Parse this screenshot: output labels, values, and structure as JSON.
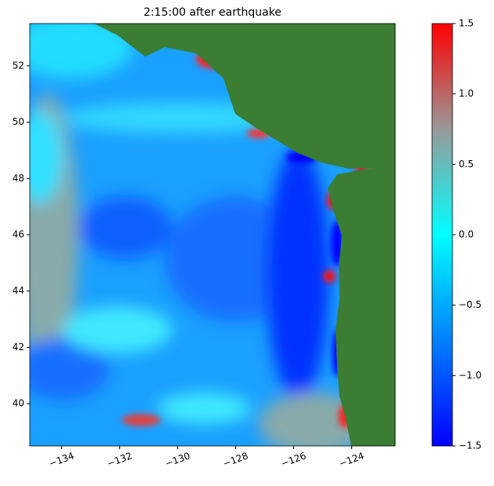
{
  "chart_data": {
    "type": "heatmap",
    "title": "2:15:00 after earthquake",
    "xlim": [
      -135.1,
      -122.5
    ],
    "xticks": [
      {
        "value": -134,
        "label": "−134"
      },
      {
        "value": -132,
        "label": "−132"
      },
      {
        "value": -130,
        "label": "−130"
      },
      {
        "value": -128,
        "label": "−128"
      },
      {
        "value": -126,
        "label": "−126"
      },
      {
        "value": -124,
        "label": "−124"
      }
    ],
    "ylim": [
      38.5,
      53.5
    ],
    "yticks": [
      40,
      42,
      44,
      46,
      48,
      50,
      52
    ],
    "colorbar": {
      "clim": [
        -1.5,
        1.5
      ],
      "colors": [
        "#0000ff",
        "#0080ff",
        "#00ffff",
        "#999999",
        "#ff0000"
      ],
      "ticks": [
        {
          "value": -1.5,
          "label": "−1.5"
        },
        {
          "value": -1.0,
          "label": "−1.0"
        },
        {
          "value": -0.5,
          "label": "−0.5"
        },
        {
          "value": 0.0,
          "label": "0.0"
        },
        0.5,
        {
          "value": 1.0,
          "label": "1.0"
        },
        1.5
      ]
    }
  }
}
